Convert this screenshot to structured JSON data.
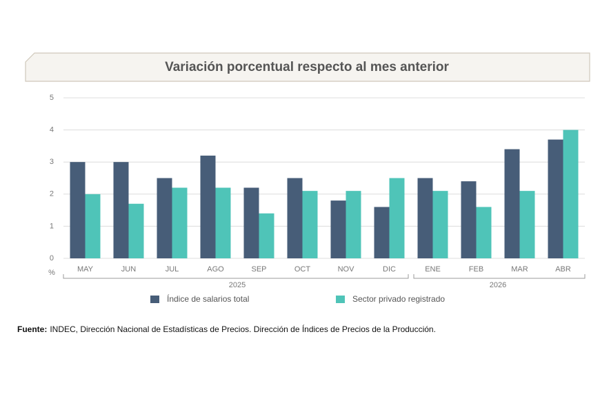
{
  "chart_data": {
    "type": "bar",
    "title": "Variación porcentual respecto al mes anterior",
    "y_label": "%",
    "categories": [
      "MAY",
      "JUN",
      "JUL",
      "AGO",
      "SEP",
      "OCT",
      "NOV",
      "DIC",
      "ENE",
      "FEB",
      "MAR",
      "ABR"
    ],
    "x_groups": [
      {
        "label": "2025",
        "count": 8
      },
      {
        "label": "2026",
        "count": 4
      }
    ],
    "series": [
      {
        "name": "Índice de salarios total",
        "color": "#475d78",
        "values": [
          3.0,
          3.0,
          2.5,
          3.2,
          2.2,
          2.5,
          1.8,
          1.6,
          2.5,
          2.4,
          3.4,
          3.7
        ]
      },
      {
        "name": "Sector privado registrado",
        "color": "#4fc4b8",
        "values": [
          2.0,
          1.7,
          2.2,
          2.2,
          1.4,
          2.1,
          2.1,
          2.5,
          2.1,
          1.6,
          2.1,
          4.0
        ]
      }
    ],
    "ylim": [
      0,
      5
    ],
    "yticks": [
      0,
      1,
      2,
      3,
      4,
      5
    ],
    "grid": true,
    "source_label": "Fuente:",
    "source": "INDEC, Dirección Nacional de Estadísticas de Precios. Dirección de Índices de Precios de la Producción."
  }
}
